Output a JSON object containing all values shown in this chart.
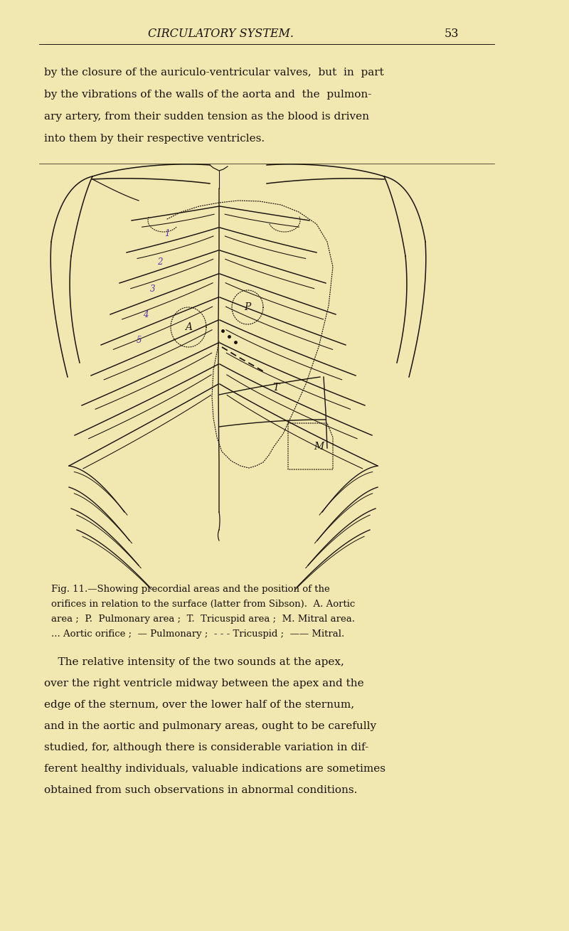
{
  "bg_color": "#f0e8b0",
  "page_width": 8.0,
  "page_height": 13.09,
  "title_text": "CIRCULATORY SYSTEM.",
  "title_page_num": "53",
  "top_text_lines": [
    "by the closure of the auriculo-ventricular valves,  but  in  part",
    "by the vibrations of the walls of the aorta and  the  pulmon-",
    "ary artery, from their sudden tension as the blood is driven",
    "into them by their respective ventricles."
  ],
  "caption_lines": [
    "Fig. 11.—Showing precordial areas and the position of the",
    "orifices in relation to the surface (latter from Sibson).  A. Aortic",
    "area ;  P.  Pulmonary area ;  T.  Tricuspid area ;  M. Mitral area.",
    "... Aortic orifice ;  — Pulmonary ;  - - - Tricuspid ;  —— Mitral."
  ],
  "bottom_text_lines": [
    "    The relative intensity of the two sounds at the apex,",
    "over the right ventricle midway between the apex and the",
    "edge of the sternum, over the lower half of the sternum,",
    "and in the aortic and pulmonary areas, ought to be carefully",
    "studied, for, although there is considerable variation in dif-",
    "ferent healthy individuals, valuable indications are sometimes",
    "obtained from such observations in abnormal conditions."
  ],
  "ink_color": "#1a1208",
  "purple_color": "#5533aa",
  "text_color": "#1a1208"
}
